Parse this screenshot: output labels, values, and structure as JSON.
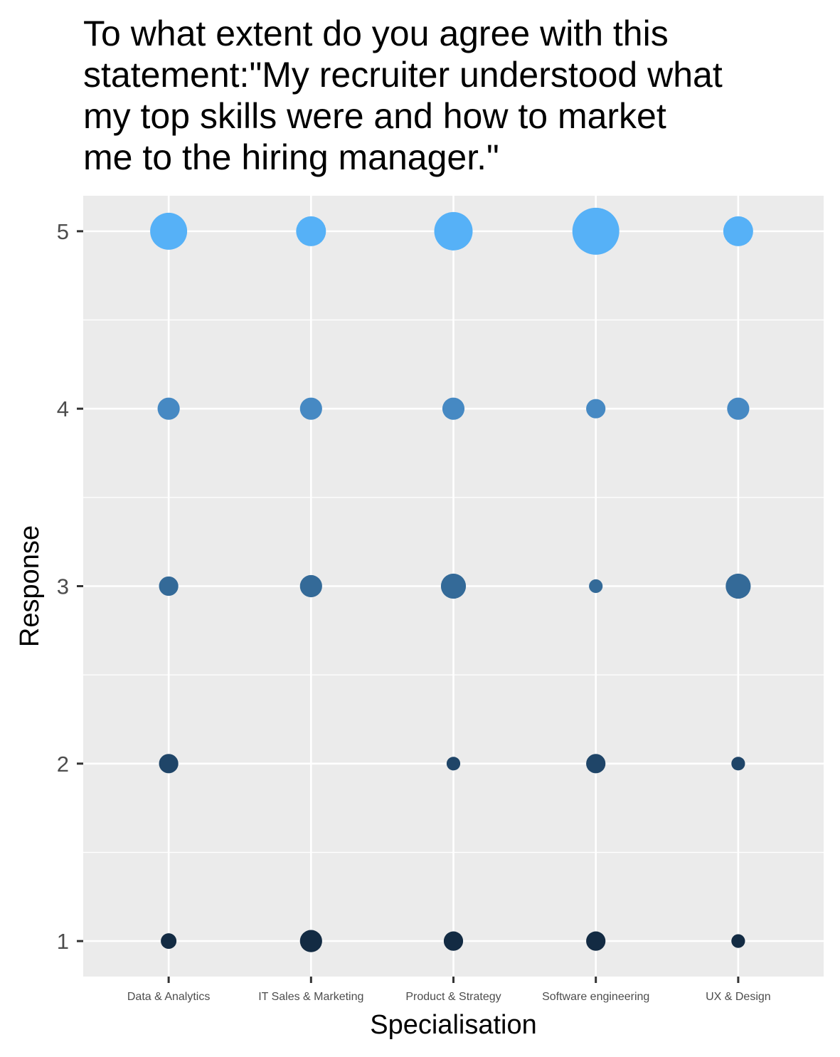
{
  "chart_data": {
    "type": "scatter",
    "title": "To what extent do you agree with this statement:\"My recruiter understood what my top skills were and how to market me to the hiring manager.\"",
    "xlabel": "Specialisation",
    "ylabel": "Response",
    "categories": [
      "Data & Analytics",
      "IT Sales & Marketing",
      "Product & Strategy",
      "Software engineering",
      "UX & Design"
    ],
    "y_ticks": [
      1,
      2,
      3,
      4,
      5
    ],
    "ylim": [
      0.8,
      5.2
    ],
    "grid": true,
    "legend": "none",
    "size_encoding": "relative count of responses",
    "color_encoding": "response value (dark navy = 1, light blue = 5)",
    "colors": {
      "1": "#132B43",
      "2": "#1F4568",
      "3": "#346A98",
      "4": "#4689C3",
      "5": "#56B1F7",
      "panel": "#EBEBEB",
      "grid": "#FFFFFF"
    },
    "points": [
      {
        "x": "Data & Analytics",
        "y": 5,
        "size": 1.0
      },
      {
        "x": "Data & Analytics",
        "y": 4,
        "size": 0.48
      },
      {
        "x": "Data & Analytics",
        "y": 3,
        "size": 0.38
      },
      {
        "x": "Data & Analytics",
        "y": 2,
        "size": 0.38
      },
      {
        "x": "Data & Analytics",
        "y": 1,
        "size": 0.25
      },
      {
        "x": "IT Sales & Marketing",
        "y": 5,
        "size": 0.75
      },
      {
        "x": "IT Sales & Marketing",
        "y": 4,
        "size": 0.48
      },
      {
        "x": "IT Sales & Marketing",
        "y": 3,
        "size": 0.48
      },
      {
        "x": "IT Sales & Marketing",
        "y": 1,
        "size": 0.48
      },
      {
        "x": "Product & Strategy",
        "y": 5,
        "size": 1.05
      },
      {
        "x": "Product & Strategy",
        "y": 4,
        "size": 0.48
      },
      {
        "x": "Product & Strategy",
        "y": 3,
        "size": 0.58
      },
      {
        "x": "Product & Strategy",
        "y": 2,
        "size": 0.18
      },
      {
        "x": "Product & Strategy",
        "y": 1,
        "size": 0.38
      },
      {
        "x": "Software engineering",
        "y": 5,
        "size": 1.35
      },
      {
        "x": "Software engineering",
        "y": 4,
        "size": 0.38
      },
      {
        "x": "Software engineering",
        "y": 3,
        "size": 0.18
      },
      {
        "x": "Software engineering",
        "y": 2,
        "size": 0.38
      },
      {
        "x": "Software engineering",
        "y": 1,
        "size": 0.38
      },
      {
        "x": "UX & Design",
        "y": 5,
        "size": 0.75
      },
      {
        "x": "UX & Design",
        "y": 4,
        "size": 0.48
      },
      {
        "x": "UX & Design",
        "y": 3,
        "size": 0.58
      },
      {
        "x": "UX & Design",
        "y": 2,
        "size": 0.18
      },
      {
        "x": "UX & Design",
        "y": 1,
        "size": 0.18
      }
    ]
  }
}
